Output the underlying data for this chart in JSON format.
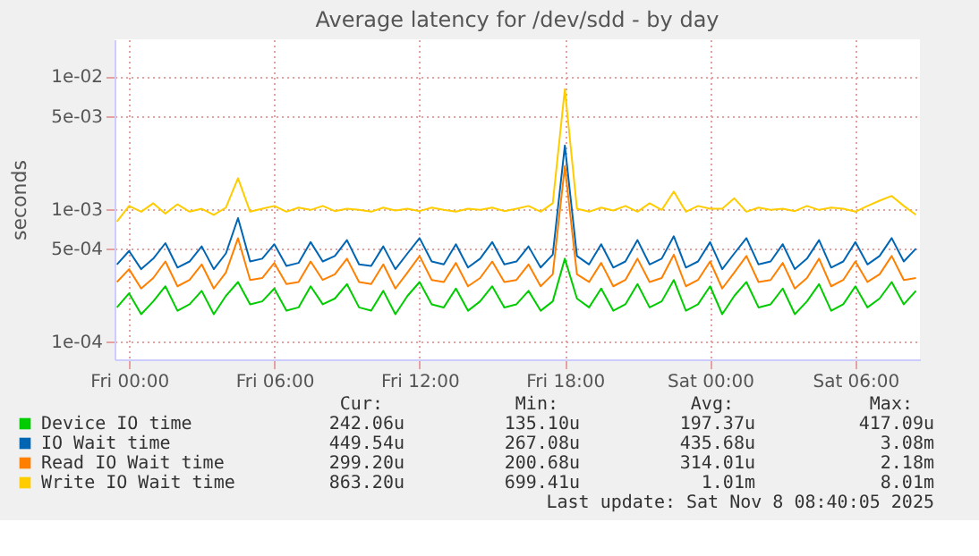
{
  "chart_data": {
    "type": "line",
    "title": "Average latency for /dev/sdd - by day",
    "ylabel": "seconds",
    "x": [
      "2025-11-06T23:30",
      "2025-11-07T00:00",
      "2025-11-07T00:30",
      "2025-11-07T01:00",
      "2025-11-07T01:30",
      "2025-11-07T02:00",
      "2025-11-07T02:30",
      "2025-11-07T03:00",
      "2025-11-07T03:30",
      "2025-11-07T04:00",
      "2025-11-07T04:30",
      "2025-11-07T05:00",
      "2025-11-07T05:30",
      "2025-11-07T06:00",
      "2025-11-07T06:30",
      "2025-11-07T07:00",
      "2025-11-07T07:30",
      "2025-11-07T08:00",
      "2025-11-07T08:30",
      "2025-11-07T09:00",
      "2025-11-07T09:30",
      "2025-11-07T10:00",
      "2025-11-07T10:30",
      "2025-11-07T11:00",
      "2025-11-07T11:30",
      "2025-11-07T12:00",
      "2025-11-07T12:30",
      "2025-11-07T13:00",
      "2025-11-07T13:30",
      "2025-11-07T14:00",
      "2025-11-07T14:30",
      "2025-11-07T15:00",
      "2025-11-07T15:30",
      "2025-11-07T16:00",
      "2025-11-07T16:30",
      "2025-11-07T17:00",
      "2025-11-07T17:30",
      "2025-11-07T18:00",
      "2025-11-07T18:30",
      "2025-11-07T19:00",
      "2025-11-07T19:30",
      "2025-11-07T20:00",
      "2025-11-07T20:30",
      "2025-11-07T21:00",
      "2025-11-07T21:30",
      "2025-11-07T22:00",
      "2025-11-07T22:30",
      "2025-11-07T23:00",
      "2025-11-07T23:30",
      "2025-11-08T00:00",
      "2025-11-08T00:30",
      "2025-11-08T01:00",
      "2025-11-08T01:30",
      "2025-11-08T02:00",
      "2025-11-08T02:30",
      "2025-11-08T03:00",
      "2025-11-08T03:30",
      "2025-11-08T04:00",
      "2025-11-08T04:30",
      "2025-11-08T05:00",
      "2025-11-08T05:30",
      "2025-11-08T06:00",
      "2025-11-08T06:30",
      "2025-11-08T07:00",
      "2025-11-08T07:30",
      "2025-11-08T08:00",
      "2025-11-08T08:30"
    ],
    "xlim": [
      "2025-11-06T23:24",
      "2025-11-08T08:40"
    ],
    "xticks": [
      {
        "value": "2025-11-07T00:00",
        "label": "Fri 00:00"
      },
      {
        "value": "2025-11-07T06:00",
        "label": "Fri 06:00"
      },
      {
        "value": "2025-11-07T12:00",
        "label": "Fri 12:00"
      },
      {
        "value": "2025-11-07T18:00",
        "label": "Fri 18:00"
      },
      {
        "value": "2025-11-08T00:00",
        "label": "Sat 00:00"
      },
      {
        "value": "2025-11-08T06:00",
        "label": "Sat 06:00"
      }
    ],
    "ylim": [
      7.3e-05,
      0.019
    ],
    "log": "y",
    "yticks": [
      {
        "value": 0.0001,
        "label": "1e-04"
      },
      {
        "value": 0.0005,
        "label": "5e-04"
      },
      {
        "value": 0.001,
        "label": "1e-03"
      },
      {
        "value": 0.005,
        "label": "5e-03"
      },
      {
        "value": 0.01,
        "label": "1e-02"
      }
    ],
    "grid": true,
    "legend": "bottom",
    "line_style": "solid",
    "marker": "none",
    "series": [
      {
        "name": "Device IO time",
        "color": "#00cc00",
        "values": [
          0.00018,
          0.00023,
          0.00016,
          0.0002,
          0.00026,
          0.00017,
          0.00019,
          0.00024,
          0.00016,
          0.00022,
          0.00028,
          0.00019,
          0.0002,
          0.00025,
          0.00017,
          0.00018,
          0.00026,
          0.00019,
          0.00021,
          0.00027,
          0.00018,
          0.00017,
          0.00024,
          0.00016,
          0.00022,
          0.00028,
          0.00019,
          0.00018,
          0.00025,
          0.00017,
          0.0002,
          0.00026,
          0.00018,
          0.00019,
          0.00024,
          0.00017,
          0.0002,
          0.00042,
          0.00021,
          0.00018,
          0.00025,
          0.00017,
          0.00019,
          0.00027,
          0.00018,
          0.0002,
          0.00029,
          0.00017,
          0.00019,
          0.00026,
          0.00016,
          0.00022,
          0.00028,
          0.00018,
          0.00019,
          0.00025,
          0.00016,
          0.0002,
          0.00027,
          0.00017,
          0.00019,
          0.00026,
          0.00018,
          0.00021,
          0.00028,
          0.00019,
          0.00024
        ]
      },
      {
        "name": "IO Wait time",
        "color": "#0066b3",
        "values": [
          0.00038,
          0.00048,
          0.00035,
          0.00042,
          0.00055,
          0.00036,
          0.0004,
          0.00052,
          0.00035,
          0.00046,
          0.00085,
          0.0004,
          0.00042,
          0.00054,
          0.00037,
          0.00039,
          0.00056,
          0.0004,
          0.00044,
          0.00058,
          0.00038,
          0.00037,
          0.00052,
          0.00035,
          0.00046,
          0.0006,
          0.0004,
          0.00038,
          0.00054,
          0.00036,
          0.00042,
          0.00056,
          0.00038,
          0.0004,
          0.00052,
          0.00036,
          0.00045,
          0.003,
          0.00044,
          0.00038,
          0.00054,
          0.00036,
          0.0004,
          0.00058,
          0.00038,
          0.00042,
          0.00062,
          0.00036,
          0.0004,
          0.00056,
          0.00035,
          0.00046,
          0.0006,
          0.00038,
          0.0004,
          0.00054,
          0.00035,
          0.00042,
          0.00058,
          0.00036,
          0.0004,
          0.00056,
          0.00038,
          0.00044,
          0.0006,
          0.0004,
          0.0005
        ]
      },
      {
        "name": "Read IO Wait time",
        "color": "#ff8000",
        "values": [
          0.00028,
          0.00035,
          0.00025,
          0.0003,
          0.0004,
          0.00026,
          0.00029,
          0.00038,
          0.00025,
          0.00033,
          0.0006,
          0.00029,
          0.0003,
          0.00039,
          0.00027,
          0.00028,
          0.0004,
          0.00029,
          0.00032,
          0.00042,
          0.00028,
          0.00027,
          0.00038,
          0.00025,
          0.00033,
          0.00044,
          0.00029,
          0.00028,
          0.00039,
          0.00026,
          0.0003,
          0.0004,
          0.00028,
          0.00029,
          0.00038,
          0.00026,
          0.00032,
          0.0021,
          0.00032,
          0.00028,
          0.00039,
          0.00026,
          0.00029,
          0.00042,
          0.00028,
          0.0003,
          0.00045,
          0.00026,
          0.00029,
          0.0004,
          0.00025,
          0.00033,
          0.00044,
          0.00028,
          0.00029,
          0.00039,
          0.00025,
          0.0003,
          0.00042,
          0.00026,
          0.00029,
          0.0004,
          0.00028,
          0.00032,
          0.00044,
          0.00029,
          0.0003
        ]
      },
      {
        "name": "Write IO Wait time",
        "color": "#ffcc00",
        "values": [
          0.0008,
          0.00105,
          0.00095,
          0.0011,
          0.00092,
          0.00108,
          0.00095,
          0.001,
          0.0009,
          0.00102,
          0.0017,
          0.00095,
          0.001,
          0.00105,
          0.00095,
          0.00102,
          0.00098,
          0.00105,
          0.00096,
          0.001,
          0.00098,
          0.00095,
          0.00102,
          0.00097,
          0.001,
          0.00096,
          0.00102,
          0.00098,
          0.00095,
          0.001,
          0.00098,
          0.00102,
          0.00096,
          0.001,
          0.00105,
          0.00095,
          0.0011,
          0.008,
          0.001,
          0.00095,
          0.00102,
          0.00097,
          0.00105,
          0.00095,
          0.0011,
          0.00098,
          0.00135,
          0.00095,
          0.00105,
          0.001,
          0.001,
          0.0012,
          0.00095,
          0.00102,
          0.00098,
          0.001,
          0.00096,
          0.00105,
          0.00098,
          0.00102,
          0.001,
          0.00095,
          0.00105,
          0.00115,
          0.00125,
          0.00105,
          0.0009
        ]
      }
    ],
    "annotations": [
      "Cur:",
      "Min:",
      "Avg:",
      "Max:",
      "242.06u",
      "135.10u",
      "197.37u",
      "417.09u",
      "449.54u",
      "267.08u",
      "435.68u",
      "3.08m",
      "299.20u",
      "200.68u",
      "314.01u",
      "2.18m",
      "863.20u",
      "699.41u",
      "1.01m",
      "8.01m",
      "Last update: Sat Nov  8 08:40:05 2025"
    ]
  }
}
